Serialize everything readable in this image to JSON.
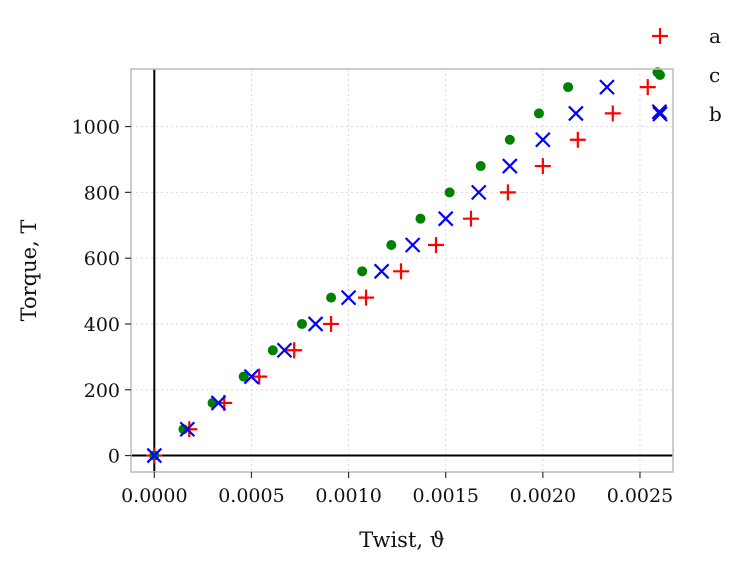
{
  "chart_data": {
    "type": "scatter",
    "title": "",
    "xlabel": "Twist, ϑ",
    "ylabel": "Torque, T",
    "xlim": [
      -0.00012,
      0.00267
    ],
    "ylim": [
      -50,
      1175
    ],
    "xticks": [
      0.0,
      0.0005,
      0.001,
      0.0015,
      0.002,
      0.0025
    ],
    "xtick_labels": [
      "0.0000",
      "0.0005",
      "0.0010",
      "0.0015",
      "0.0020",
      "0.0025"
    ],
    "yticks": [
      0,
      200,
      400,
      600,
      800,
      1000
    ],
    "ytick_labels": [
      "0",
      "200",
      "400",
      "600",
      "800",
      "1000"
    ],
    "grid": true,
    "zero_lines": true,
    "legend_position": "outside-top-right",
    "series": [
      {
        "name": "a",
        "marker": "plus",
        "color": "#ff0000",
        "x": [
          0.0,
          0.00018,
          0.00036,
          0.00054,
          0.00072,
          0.00091,
          0.00109,
          0.00127,
          0.00145,
          0.00163,
          0.00182,
          0.002,
          0.00218,
          0.00236,
          0.00254
        ],
        "y": [
          0,
          80,
          160,
          240,
          320,
          400,
          480,
          560,
          640,
          720,
          800,
          880,
          960,
          1040,
          1120
        ]
      },
      {
        "name": "c",
        "marker": "dot",
        "color": "#008000",
        "x": [
          0.0,
          0.00015,
          0.0003,
          0.00046,
          0.00061,
          0.00076,
          0.00091,
          0.00107,
          0.00122,
          0.00137,
          0.00152,
          0.00168,
          0.00183,
          0.00198,
          0.00213,
          0.00259
        ],
        "y": [
          0,
          80,
          160,
          240,
          320,
          400,
          480,
          560,
          640,
          720,
          800,
          880,
          960,
          1040,
          1120,
          1165
        ]
      },
      {
        "name": "b",
        "marker": "x",
        "color": "#0000ff",
        "x": [
          0.0,
          0.00017,
          0.00033,
          0.0005,
          0.00067,
          0.00083,
          0.001,
          0.00117,
          0.00133,
          0.0015,
          0.00167,
          0.00183,
          0.002,
          0.00217,
          0.00233,
          0.0026
        ],
        "y": [
          0,
          80,
          160,
          240,
          320,
          400,
          480,
          560,
          640,
          720,
          800,
          880,
          960,
          1040,
          1120,
          1045
        ]
      }
    ]
  }
}
